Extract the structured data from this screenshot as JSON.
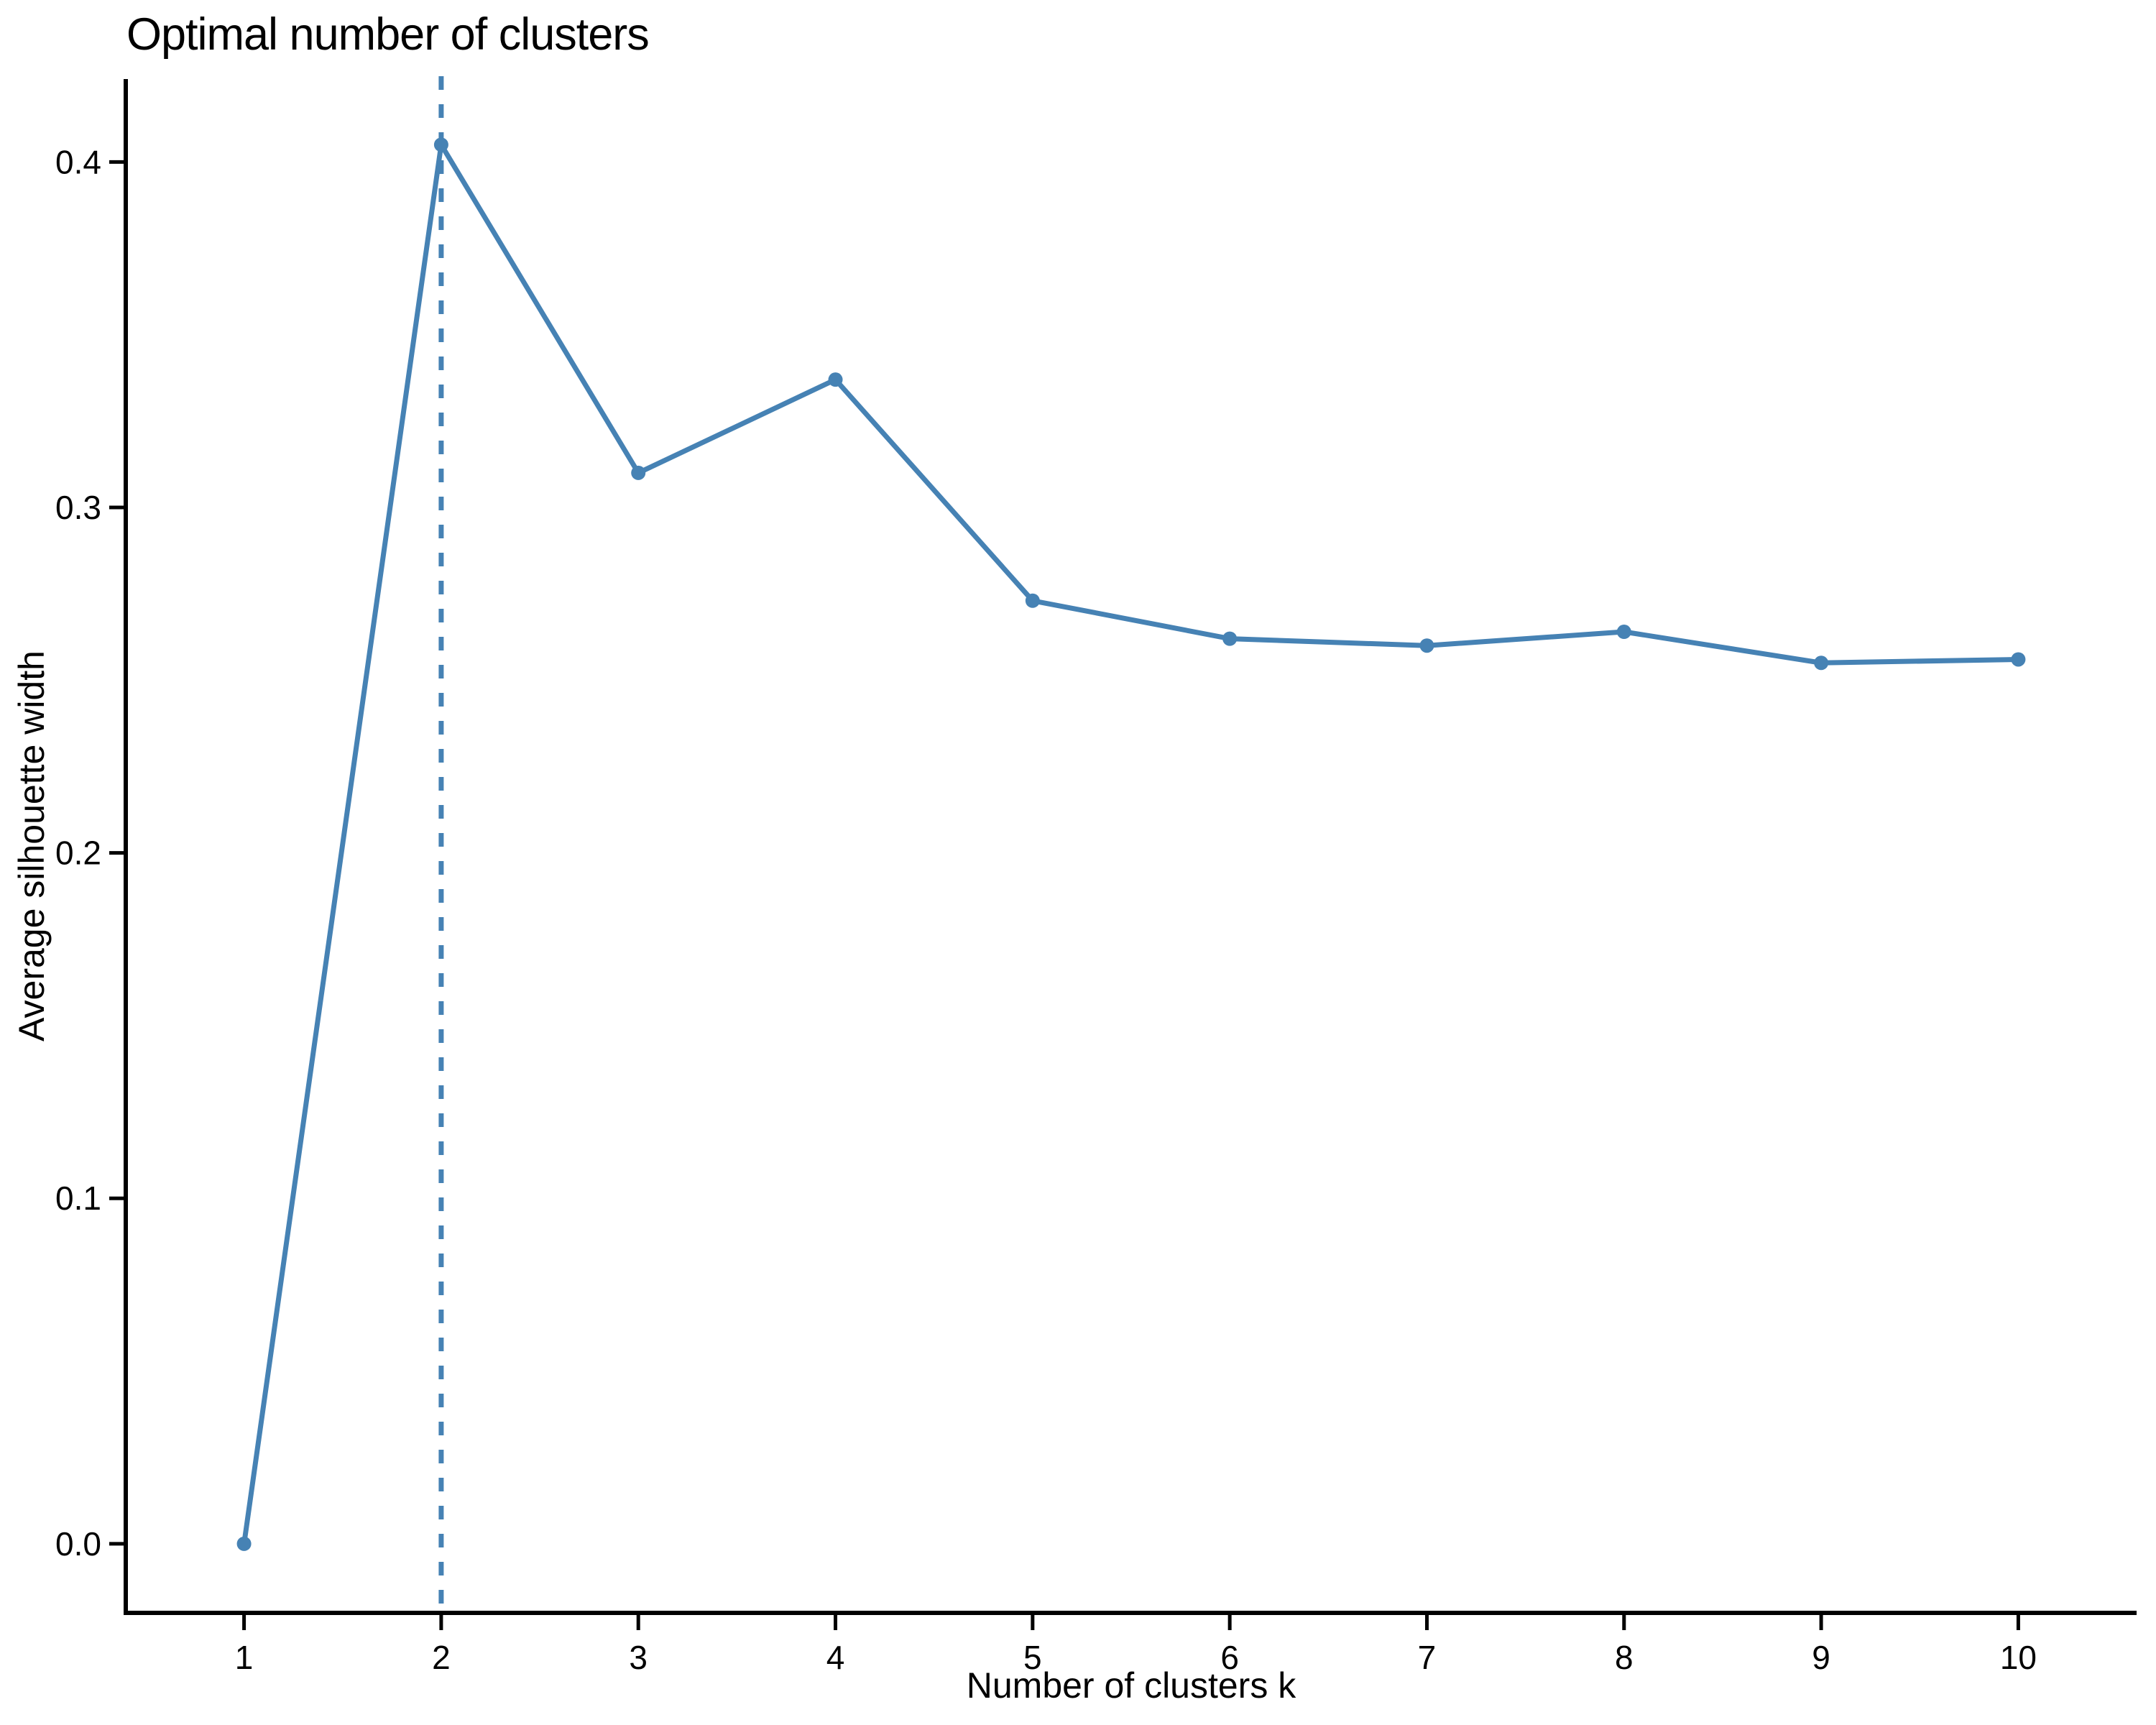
{
  "chart_data": {
    "type": "line",
    "title": "Optimal number of clusters",
    "xlabel": "Number of clusters k",
    "ylabel": "Average silhouette width",
    "x": [
      1,
      2,
      3,
      4,
      5,
      6,
      7,
      8,
      9,
      10
    ],
    "values": [
      0.0,
      0.405,
      0.31,
      0.337,
      0.273,
      0.262,
      0.26,
      0.264,
      0.255,
      0.256
    ],
    "series_name": "Average silhouette width",
    "xticks": [
      "1",
      "2",
      "3",
      "4",
      "5",
      "6",
      "7",
      "8",
      "9",
      "10"
    ],
    "xtick_values": [
      1,
      2,
      3,
      4,
      5,
      6,
      7,
      8,
      9,
      10
    ],
    "yticks": [
      "0.0",
      "0.1",
      "0.2",
      "0.3",
      "0.4"
    ],
    "ytick_values": [
      0.0,
      0.1,
      0.2,
      0.3,
      0.4
    ],
    "xlim": [
      0.4,
      10.6
    ],
    "ylim": [
      -0.02,
      0.424
    ],
    "grid": false,
    "legend_position": "none",
    "marker": "circle",
    "vline": {
      "x": 2,
      "style": "dashed",
      "meaning": "optimal-k"
    },
    "colors": {
      "line": "#4682B4",
      "point": "#4682B4",
      "vline": "#4682B4",
      "axis": "#000000",
      "tick_text": "#000000",
      "title_text": "#000000",
      "background": "#FFFFFF"
    }
  }
}
